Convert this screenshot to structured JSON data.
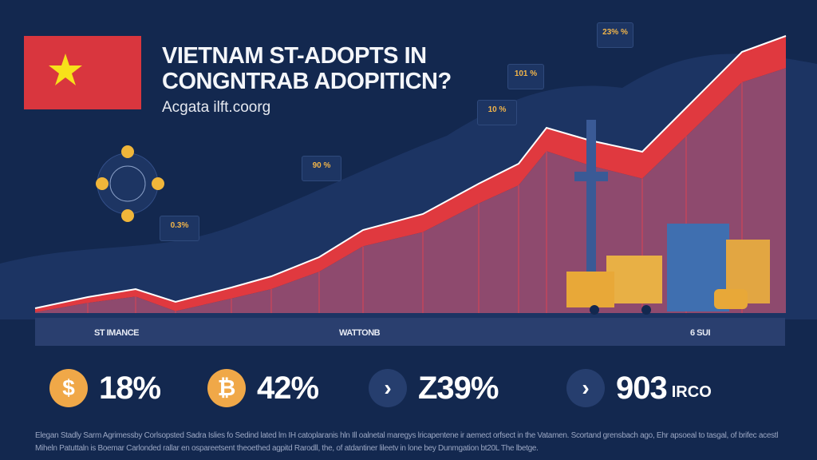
{
  "header": {
    "title_line1": "VIETNAM ST-ADOPTS IN",
    "title_line2": "CONGNTRAB ADOPITICN?",
    "subtitle": "Acgata ilft.coorg"
  },
  "colors": {
    "background": "#13284f",
    "line_band": "#e0393f",
    "area": "#8e4a6e",
    "flag_red": "#d9363e",
    "flag_star": "#f7e11a",
    "coin_gold": "#f0a848"
  },
  "tags": [
    "0.3%",
    "90 %",
    "10 %",
    "101 %",
    "23% %"
  ],
  "axis_labels": [
    "ST IMANCE",
    "WATTONB",
    "6 SUI"
  ],
  "stats": [
    {
      "icon": "dollar-coin",
      "glyph": "$",
      "value": "18%",
      "unit": ""
    },
    {
      "icon": "bitcoin-coin",
      "glyph": "₿",
      "value": "42%",
      "unit": ""
    },
    {
      "icon": "cloud-arrow",
      "glyph": "›",
      "value": "Z39%",
      "unit": ""
    },
    {
      "icon": "cloud-arrow",
      "glyph": "›",
      "value": "903",
      "unit": "IRCO"
    }
  ],
  "footnote": "Elegan Stadly Sarm Agrimessby Corlsopsted Sadra Islies fo Sedind lated lm IH catoplaranis hln Ill oalnetal maregys lricapentene ir aemect orfsect in the Vatamen. Scortand grensbach ago, Ehr apsoeal to tasgal, of brifec acestl Miheln Patuttaln is Boemar Carlonded rallar en ospareetsent theoethed agpitd Rarodll, the, of atdantiner lileetv in lone bey Dunmgation bt20L The lbetge."
}
